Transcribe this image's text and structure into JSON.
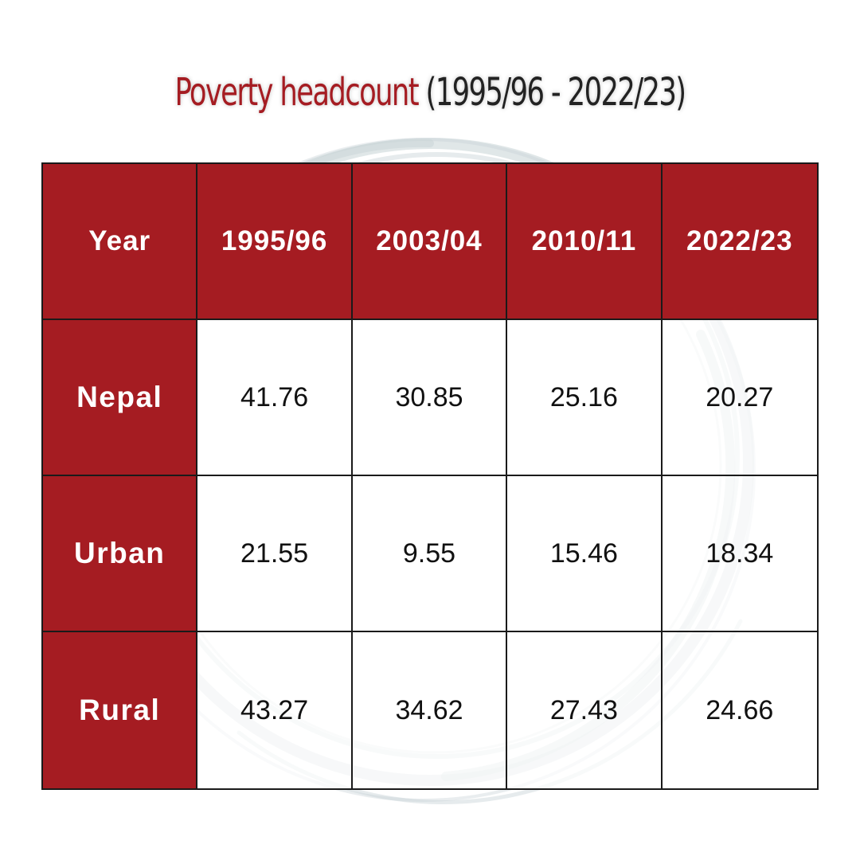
{
  "title": {
    "main": "Poverty headcount",
    "years": "(1995/96 - 2022/23)"
  },
  "colors": {
    "accent": "#a51c22",
    "text_dark": "#222222",
    "swirl": "#c7d3d6"
  },
  "chart_data": {
    "type": "table",
    "title": "Poverty headcount (1995/96 - 2022/23)",
    "corner_label": "Year",
    "columns": [
      "1995/96",
      "2003/04",
      "2010/11",
      "2022/23"
    ],
    "rows": [
      {
        "label": "Nepal",
        "values": [
          "41.76",
          "30.85",
          "25.16",
          "20.27"
        ]
      },
      {
        "label": "Urban",
        "values": [
          "21.55",
          "9.55",
          "15.46",
          "18.34"
        ]
      },
      {
        "label": "Rural",
        "values": [
          "43.27",
          "34.62",
          "27.43",
          "24.66"
        ]
      }
    ]
  }
}
